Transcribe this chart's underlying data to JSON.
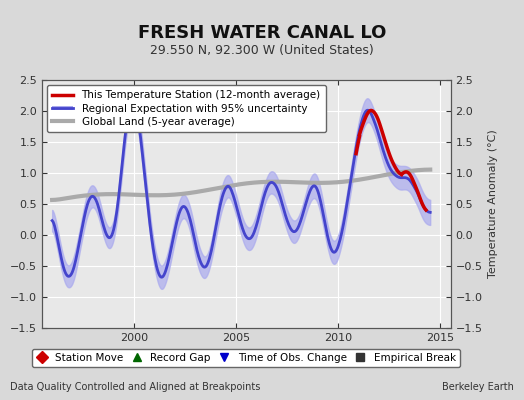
{
  "title": "FRESH WATER CANAL LO",
  "subtitle": "29.550 N, 92.300 W (United States)",
  "ylabel": "Temperature Anomaly (°C)",
  "xlabel_left": "Data Quality Controlled and Aligned at Breakpoints",
  "xlabel_right": "Berkeley Earth",
  "ylim": [
    -1.5,
    2.5
  ],
  "xlim": [
    1995.5,
    2015.5
  ],
  "xticks": [
    2000,
    2005,
    2010,
    2015
  ],
  "yticks": [
    -1.5,
    -1.0,
    -0.5,
    0.0,
    0.5,
    1.0,
    1.5,
    2.0,
    2.5
  ],
  "bg_color": "#d9d9d9",
  "plot_bg_color": "#e8e8e8",
  "legend1_items": [
    {
      "label": "This Temperature Station (12-month average)",
      "color": "#cc0000",
      "lw": 2.5
    },
    {
      "label": "Regional Expectation with 95% uncertainty",
      "color": "#4444cc",
      "lw": 2.0,
      "fill_color": "#aaaaee"
    },
    {
      "label": "Global Land (5-year average)",
      "color": "#aaaaaa",
      "lw": 3.0
    }
  ],
  "legend2_items": [
    {
      "label": "Station Move",
      "marker": "D",
      "color": "#cc0000"
    },
    {
      "label": "Record Gap",
      "marker": "^",
      "color": "#006600"
    },
    {
      "label": "Time of Obs. Change",
      "marker": "v",
      "color": "#0000cc"
    },
    {
      "label": "Empirical Break",
      "marker": "s",
      "color": "#333333"
    }
  ]
}
